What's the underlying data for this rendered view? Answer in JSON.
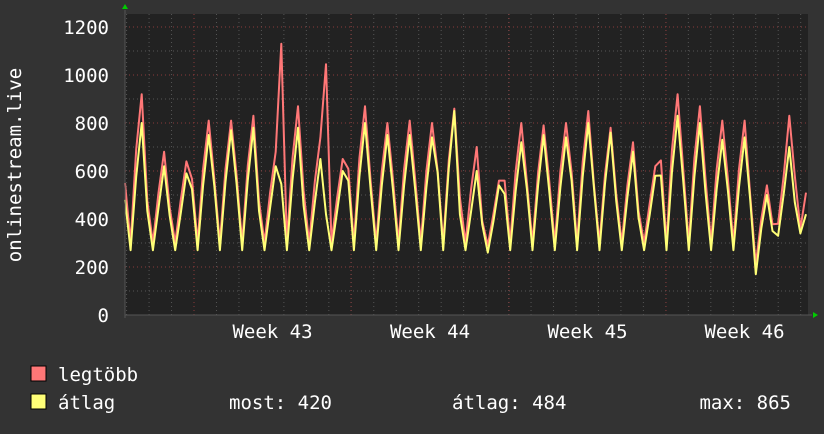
{
  "chart_data": {
    "type": "line",
    "ylabel": "onlinestream.live",
    "ylim": [
      0,
      1254
    ],
    "y_ticks": [
      "0",
      "200",
      "400",
      "600",
      "800",
      "1000",
      "1200"
    ],
    "y_tick_values": [
      0,
      200,
      400,
      600,
      800,
      1000,
      1200
    ],
    "x_tick_labels": [
      "Week 43",
      "Week 44",
      "Week 45",
      "Week 46"
    ],
    "grid": true,
    "legend_placement": "bottom-left",
    "colors": {
      "background": "#333333",
      "plot_background": "#222222",
      "minor_grid": "#555555",
      "major_grid": "#8a3a3a",
      "axis_arrow": "#00cc00",
      "legtobb": "#ff7777",
      "atlag": "#ffff77"
    },
    "series": [
      {
        "name": "legtöbb",
        "values": [
          550,
          300,
          690,
          920,
          476,
          300,
          510,
          680,
          448,
          300,
          480,
          640,
          567,
          300,
          608,
          810,
          567,
          300,
          608,
          810,
          581,
          300,
          623,
          830,
          476,
          300,
          510,
          680,
          1130,
          300,
          653,
          870,
          518,
          300,
          555,
          740,
          1045,
          300,
          488,
          650,
          609,
          300,
          653,
          870,
          560,
          300,
          600,
          800,
          567,
          300,
          608,
          810,
          560,
          300,
          600,
          800,
          602,
          300,
          645,
          860,
          490,
          300,
          525,
          700,
          392,
          290,
          420,
          560,
          560,
          300,
          600,
          800,
          553,
          300,
          593,
          790,
          560,
          300,
          600,
          800,
          595,
          300,
          638,
          850,
          546,
          300,
          585,
          780,
          504,
          300,
          540,
          720,
          434,
          300,
          465,
          620,
          644,
          300,
          690,
          920,
          609,
          300,
          653,
          870,
          567,
          300,
          608,
          810,
          567,
          300,
          608,
          810,
          500,
          210,
          400,
          540,
          378,
          380,
          580,
          830,
          580,
          360,
          510
        ]
      },
      {
        "name": "átlag",
        "values": [
          480,
          270,
          576,
          800,
          434,
          270,
          446,
          620,
          413,
          270,
          425,
          590,
          525,
          270,
          540,
          750,
          539,
          270,
          554,
          770,
          546,
          270,
          562,
          780,
          434,
          270,
          446,
          620,
          546,
          270,
          562,
          780,
          455,
          270,
          468,
          650,
          420,
          270,
          432,
          600,
          560,
          270,
          576,
          800,
          525,
          270,
          540,
          750,
          525,
          270,
          540,
          750,
          518,
          270,
          533,
          740,
          595,
          270,
          612,
          850,
          420,
          270,
          432,
          600,
          378,
          260,
          389,
          540,
          504,
          270,
          518,
          720,
          525,
          270,
          540,
          750,
          518,
          270,
          533,
          740,
          560,
          270,
          576,
          800,
          532,
          270,
          547,
          760,
          476,
          270,
          490,
          680,
          406,
          270,
          418,
          580,
          581,
          270,
          598,
          830,
          560,
          270,
          576,
          800,
          511,
          270,
          526,
          730,
          518,
          270,
          533,
          740,
          480,
          170,
          360,
          500,
          350,
          330,
          504,
          700,
          470,
          340,
          420
        ]
      }
    ]
  },
  "legend": {
    "items": [
      {
        "label": "legtöbb"
      },
      {
        "label": "átlag"
      }
    ],
    "stats": {
      "most": "most: 420",
      "atlag": "átlag: 484",
      "max": "max: 865"
    }
  }
}
